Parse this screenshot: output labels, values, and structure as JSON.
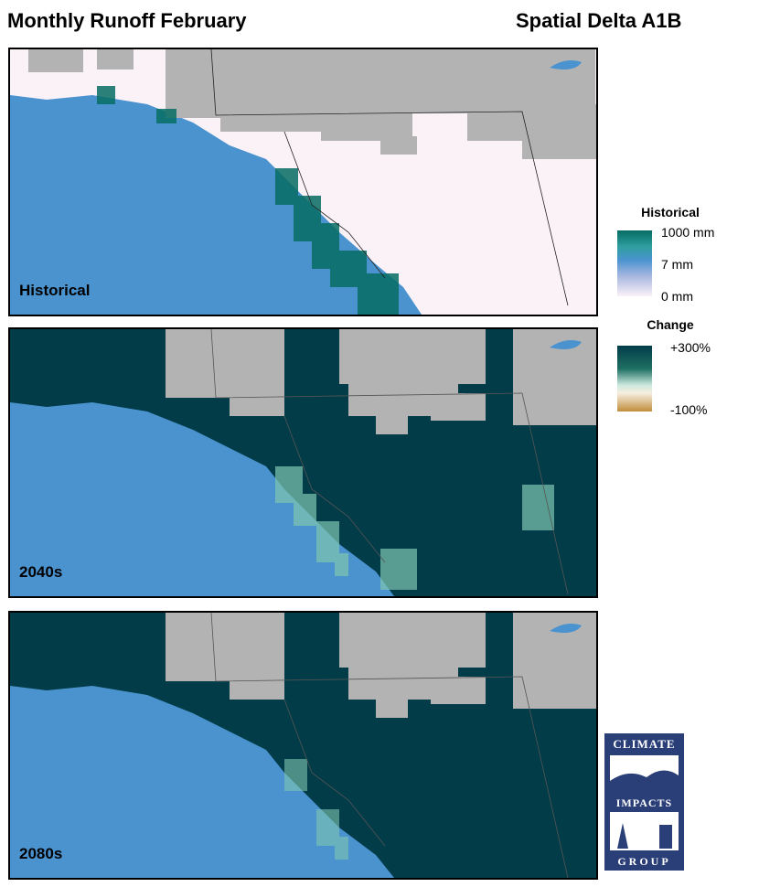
{
  "header": {
    "title": "Monthly Runoff February",
    "scenario": "Spatial Delta A1B"
  },
  "panels": [
    {
      "label": "Historical",
      "variable": "historical"
    },
    {
      "label": "2040s",
      "variable": "change"
    },
    {
      "label": "2080s",
      "variable": "change"
    }
  ],
  "legend": {
    "historical": {
      "title": "Historical",
      "ticks": [
        "1000 mm",
        "7 mm",
        "0 mm"
      ]
    },
    "change": {
      "title": "Change",
      "ticks": [
        "+300%",
        "-100%"
      ]
    }
  },
  "logo": {
    "lines": [
      "CLIMATE",
      "IMPACTS",
      "GROUP"
    ]
  },
  "colors": {
    "ocean": "#4a93cf",
    "nodata": "#b3b3b3",
    "hist_low": "#fbf2f8",
    "hist_high": "#066d64",
    "change_high": "#023c49",
    "change_low": "#c08d3c",
    "logo_bg": "#2a3f78"
  }
}
